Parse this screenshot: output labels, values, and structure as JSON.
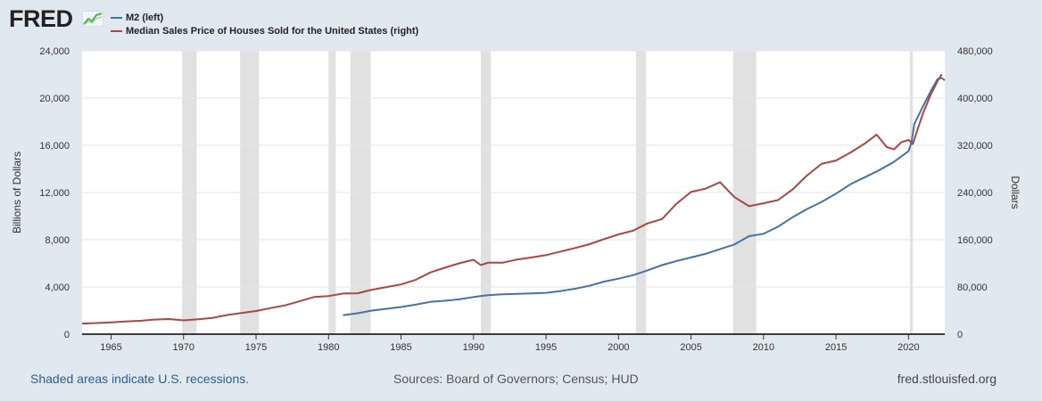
{
  "header": {
    "logo_text": "FRED",
    "logo_icon": "line-chart-icon"
  },
  "legend": {
    "items": [
      {
        "label": "M2 (left)",
        "color": "#4572a7"
      },
      {
        "label": "Median Sales Price of Houses Sold for the United States (right)",
        "color": "#aa4643"
      }
    ]
  },
  "footer": {
    "note": "Shaded areas indicate U.S. recessions.",
    "sources": "Sources: Board of Governors; Census; HUD",
    "site": "fred.stlouisfed.org"
  },
  "colors": {
    "background": "#e1e9f0",
    "plot_background": "#ffffff",
    "recession_shade": "#e1e1e1",
    "m2_line": "#4572a7",
    "house_price_line": "#aa4643",
    "grid": "#e6e6e6"
  },
  "chart_data": {
    "type": "line",
    "xlabel": "",
    "x_range": [
      1963.0,
      2022.5
    ],
    "x_ticks": [
      1965,
      1970,
      1975,
      1980,
      1985,
      1990,
      1995,
      2000,
      2005,
      2010,
      2015,
      2020
    ],
    "left_axis": {
      "label": "Billions of Dollars",
      "ylim": [
        0,
        24000
      ],
      "ticks": [
        0,
        4000,
        8000,
        12000,
        16000,
        20000,
        24000
      ],
      "tick_labels": [
        "0",
        "4,000",
        "8,000",
        "12,000",
        "16,000",
        "20,000",
        "24,000"
      ]
    },
    "right_axis": {
      "label": "Dollars",
      "ylim": [
        0,
        480000
      ],
      "ticks": [
        0,
        80000,
        160000,
        240000,
        320000,
        400000,
        480000
      ],
      "tick_labels": [
        "0",
        "80,000",
        "160,000",
        "240,000",
        "320,000",
        "400,000",
        "480,000"
      ]
    },
    "grid": true,
    "legend_position": "top-left",
    "recessions": [
      [
        1969.9,
        1970.9
      ],
      [
        1973.9,
        1975.2
      ],
      [
        1980.0,
        1980.5
      ],
      [
        1981.5,
        1982.9
      ],
      [
        1990.5,
        1991.2
      ],
      [
        2001.2,
        2001.9
      ],
      [
        2007.9,
        2009.5
      ],
      [
        2020.1,
        2020.3
      ]
    ],
    "series": [
      {
        "name": "M2 (left)",
        "axis": "left",
        "color": "#4572a7",
        "points": [
          [
            1981.0,
            1600
          ],
          [
            1982.0,
            1770
          ],
          [
            1983.0,
            2000
          ],
          [
            1984.0,
            2150
          ],
          [
            1985.0,
            2300
          ],
          [
            1986.0,
            2500
          ],
          [
            1987.0,
            2730
          ],
          [
            1988.0,
            2830
          ],
          [
            1989.0,
            2950
          ],
          [
            1990.0,
            3150
          ],
          [
            1991.0,
            3300
          ],
          [
            1992.0,
            3380
          ],
          [
            1993.0,
            3420
          ],
          [
            1994.0,
            3450
          ],
          [
            1995.0,
            3500
          ],
          [
            1996.0,
            3650
          ],
          [
            1997.0,
            3850
          ],
          [
            1998.0,
            4100
          ],
          [
            1999.0,
            4450
          ],
          [
            2000.0,
            4700
          ],
          [
            2001.0,
            5000
          ],
          [
            2002.0,
            5400
          ],
          [
            2003.0,
            5850
          ],
          [
            2004.0,
            6200
          ],
          [
            2005.0,
            6500
          ],
          [
            2006.0,
            6800
          ],
          [
            2007.0,
            7200
          ],
          [
            2008.0,
            7600
          ],
          [
            2009.0,
            8300
          ],
          [
            2010.0,
            8500
          ],
          [
            2011.0,
            9100
          ],
          [
            2012.0,
            9900
          ],
          [
            2013.0,
            10600
          ],
          [
            2014.0,
            11200
          ],
          [
            2015.0,
            11900
          ],
          [
            2016.0,
            12700
          ],
          [
            2017.0,
            13300
          ],
          [
            2018.0,
            13900
          ],
          [
            2019.0,
            14600
          ],
          [
            2020.0,
            15500
          ],
          [
            2020.2,
            16200
          ],
          [
            2020.4,
            17800
          ],
          [
            2021.0,
            19300
          ],
          [
            2021.5,
            20500
          ],
          [
            2022.0,
            21600
          ],
          [
            2022.3,
            21700
          ],
          [
            2022.5,
            21500
          ]
        ]
      },
      {
        "name": "Median Sales Price of Houses Sold for the United States (right)",
        "axis": "right",
        "color": "#aa4643",
        "points": [
          [
            1963.0,
            18000
          ],
          [
            1964.0,
            18900
          ],
          [
            1965.0,
            20000
          ],
          [
            1966.0,
            21400
          ],
          [
            1967.0,
            22700
          ],
          [
            1968.0,
            24700
          ],
          [
            1969.0,
            25600
          ],
          [
            1970.0,
            23400
          ],
          [
            1971.0,
            25200
          ],
          [
            1972.0,
            27600
          ],
          [
            1973.0,
            32500
          ],
          [
            1974.0,
            35900
          ],
          [
            1975.0,
            39300
          ],
          [
            1976.0,
            44200
          ],
          [
            1977.0,
            48800
          ],
          [
            1978.0,
            55700
          ],
          [
            1979.0,
            62900
          ],
          [
            1980.0,
            64600
          ],
          [
            1981.0,
            68900
          ],
          [
            1982.0,
            69300
          ],
          [
            1983.0,
            75300
          ],
          [
            1984.0,
            79900
          ],
          [
            1985.0,
            84300
          ],
          [
            1986.0,
            92000
          ],
          [
            1987.0,
            104500
          ],
          [
            1988.0,
            112500
          ],
          [
            1989.0,
            120000
          ],
          [
            1990.0,
            126000
          ],
          [
            1990.5,
            117000
          ],
          [
            1991.0,
            121000
          ],
          [
            1992.0,
            121000
          ],
          [
            1993.0,
            126500
          ],
          [
            1994.0,
            130000
          ],
          [
            1995.0,
            133900
          ],
          [
            1996.0,
            140000
          ],
          [
            1997.0,
            146000
          ],
          [
            1998.0,
            152500
          ],
          [
            1999.0,
            161000
          ],
          [
            2000.0,
            169000
          ],
          [
            2001.0,
            175200
          ],
          [
            2002.0,
            187600
          ],
          [
            2003.0,
            195000
          ],
          [
            2004.0,
            221000
          ],
          [
            2005.0,
            240900
          ],
          [
            2006.0,
            246500
          ],
          [
            2007.0,
            257400
          ],
          [
            2008.0,
            232100
          ],
          [
            2009.0,
            216700
          ],
          [
            2010.0,
            221800
          ],
          [
            2011.0,
            227200
          ],
          [
            2012.0,
            245200
          ],
          [
            2013.0,
            268900
          ],
          [
            2014.0,
            288500
          ],
          [
            2015.0,
            294200
          ],
          [
            2016.0,
            307800
          ],
          [
            2017.0,
            323100
          ],
          [
            2017.8,
            337900
          ],
          [
            2018.5,
            317000
          ],
          [
            2019.0,
            313000
          ],
          [
            2019.5,
            325000
          ],
          [
            2020.0,
            329000
          ],
          [
            2020.3,
            322000
          ],
          [
            2020.6,
            345000
          ],
          [
            2021.0,
            374000
          ],
          [
            2021.5,
            404000
          ],
          [
            2022.0,
            428700
          ],
          [
            2022.3,
            440300
          ]
        ]
      }
    ]
  }
}
